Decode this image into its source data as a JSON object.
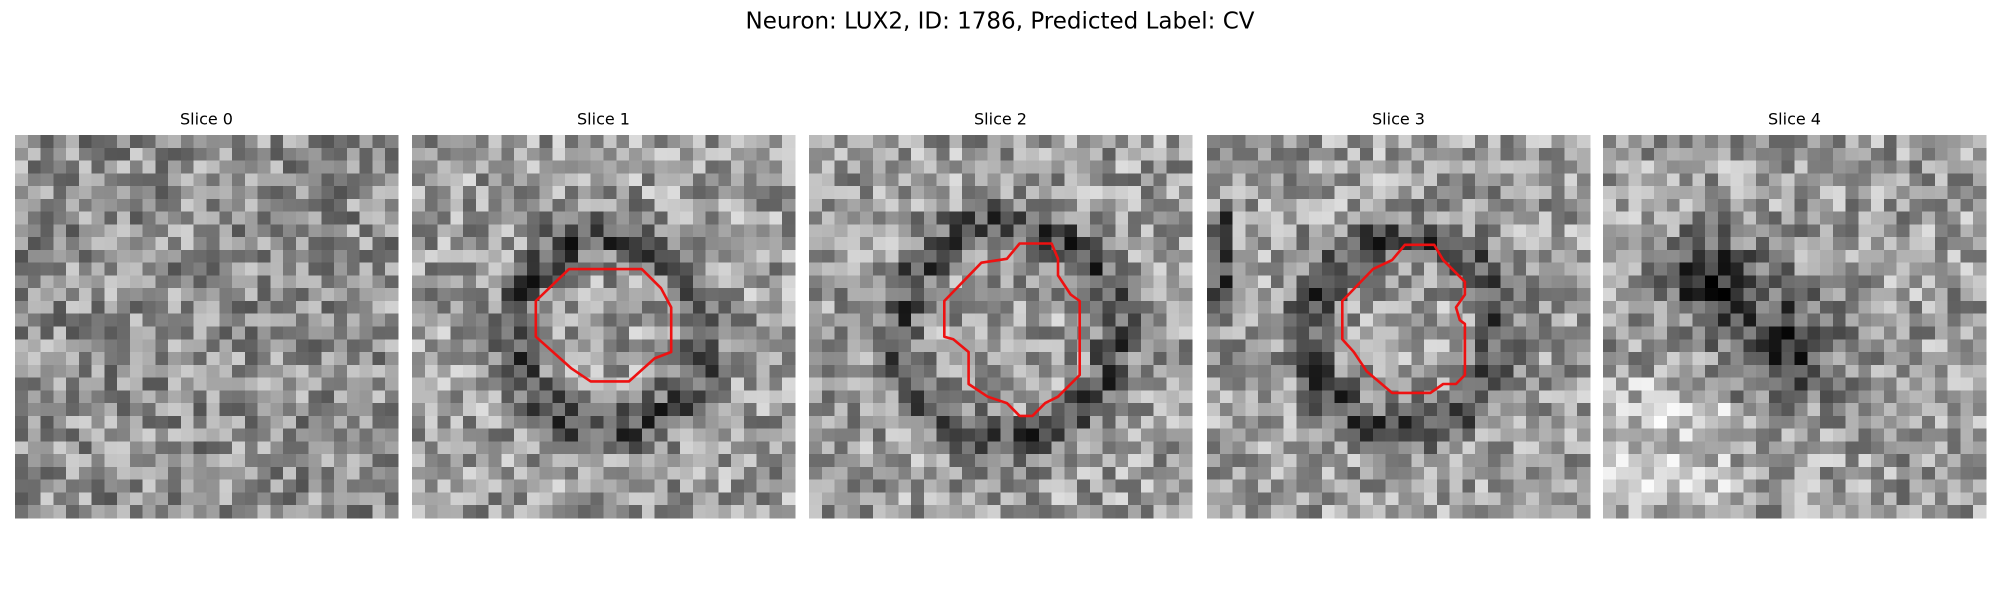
{
  "title": "Neuron: LUX2, ID: 1786, Predicted Label: CV",
  "panels": [
    {
      "title": "Slice 0"
    },
    {
      "title": "Slice 1"
    },
    {
      "title": "Slice 2"
    },
    {
      "title": "Slice 3"
    },
    {
      "title": "Slice 4"
    }
  ]
}
